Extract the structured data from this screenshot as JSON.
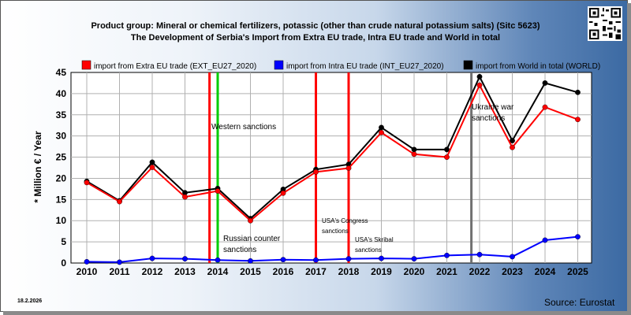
{
  "header": {
    "title_line1": "Product group: Mineral or chemical fertilizers, potassic (other than crude natural potassium salts) (Sitc 5623)",
    "title_line2": "The Development of Serbia's Import from Extra EU trade, Intra EU trade and World in total"
  },
  "footer": {
    "date": "18.2.2026",
    "source": "Source: Eurostat"
  },
  "colors": {
    "extra_eu": "#ff0000",
    "intra_eu": "#0000ff",
    "world": "#000000",
    "marker_red": "#ff0000",
    "marker_green": "#00cc00",
    "marker_grey": "#707070"
  },
  "chart_data": {
    "type": "line",
    "ylabel": "* Million € / Year",
    "ylim": [
      0,
      45
    ],
    "yticks": [
      0,
      5,
      10,
      15,
      20,
      25,
      30,
      35,
      40,
      45
    ],
    "categories": [
      "2010",
      "2011",
      "2012",
      "2013",
      "2014",
      "2015",
      "2016",
      "2017",
      "2018",
      "2019",
      "2020",
      "2021",
      "2022",
      "2023",
      "2024",
      "2025"
    ],
    "grid": true,
    "legend_position": "top",
    "series": [
      {
        "key": "extra",
        "name": "import from Extra EU trade (EXT_EU27_2020)",
        "color": "#ff0000",
        "values": [
          19.0,
          14.5,
          22.6,
          15.6,
          17.0,
          10.0,
          16.5,
          21.5,
          22.4,
          30.8,
          25.7,
          25.0,
          42.0,
          27.3,
          36.8,
          33.9
        ]
      },
      {
        "key": "intra",
        "name": "import from Intra EU trade (INT_EU27_2020)",
        "color": "#0000ff",
        "values": [
          0.3,
          0.2,
          1.1,
          1.0,
          0.7,
          0.5,
          0.8,
          0.7,
          1.0,
          1.1,
          1.0,
          1.8,
          2.0,
          1.5,
          5.4,
          6.2
        ]
      },
      {
        "key": "world",
        "name": "import from World in total (WORLD)",
        "color": "#000000",
        "values": [
          19.3,
          14.7,
          23.8,
          16.6,
          17.6,
          10.5,
          17.4,
          22.1,
          23.3,
          32.0,
          26.8,
          26.8,
          44.0,
          28.9,
          42.5,
          40.3
        ]
      }
    ],
    "markers": [
      {
        "x": 2013.75,
        "color": "red"
      },
      {
        "x": 2014.0,
        "color": "green"
      },
      {
        "x": 2017.0,
        "color": "red"
      },
      {
        "x": 2018.0,
        "color": "red"
      },
      {
        "x": 2021.75,
        "color": "grey"
      }
    ],
    "annotations": {
      "western": "Western sanctions",
      "russian_1": "Russian counter",
      "russian_2": "sanctions",
      "usa_congress_1": "USA's Congress",
      "usa_congress_2": "sanctions",
      "usa_skribal_1": "USA's Skribal",
      "usa_skribal_2": "sanctions",
      "ukraine_1": "Ukraine war",
      "ukraine_2": "sanctions"
    }
  }
}
